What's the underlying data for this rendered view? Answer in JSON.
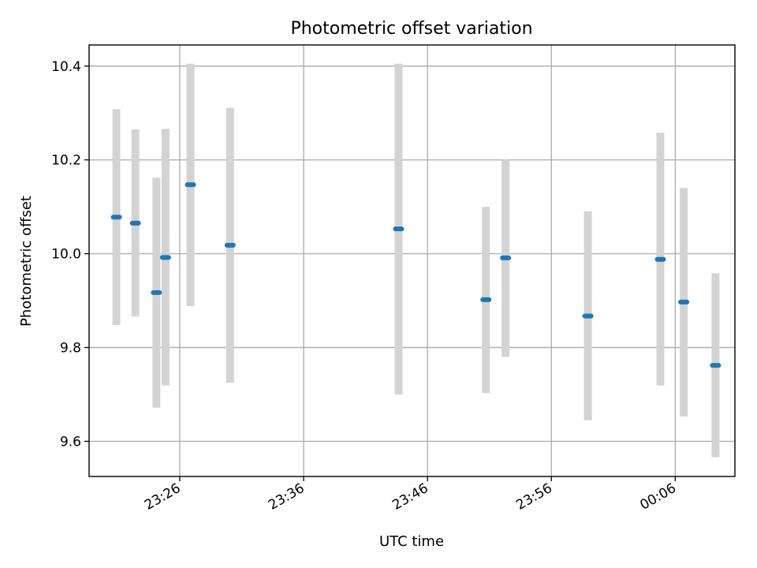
{
  "chart_data": {
    "type": "scatter",
    "title": "Photometric offset variation",
    "xlabel": "UTC time",
    "ylabel": "Photometric offset",
    "x_unit": "UTC clock time",
    "x_ticks": [
      "23:26",
      "23:36",
      "23:46",
      "23:56",
      "00:06"
    ],
    "y_ticks": [
      9.6,
      9.8,
      10.0,
      10.2,
      10.4
    ],
    "xlim": [
      "23:18:41",
      "00:10:49"
    ],
    "ylim": [
      9.525,
      10.445
    ],
    "grid": true,
    "marker_color": "#1f77b4",
    "errorbar_color": "#d3d3d3",
    "points": [
      {
        "x": "23:20:53",
        "y": 10.078,
        "low": 9.848,
        "high": 10.308
      },
      {
        "x": "23:22:25",
        "y": 10.065,
        "low": 9.866,
        "high": 10.265
      },
      {
        "x": "23:24:07",
        "y": 9.917,
        "low": 9.672,
        "high": 10.162
      },
      {
        "x": "23:24:51",
        "y": 9.992,
        "low": 9.719,
        "high": 10.266
      },
      {
        "x": "23:26:52",
        "y": 10.147,
        "low": 9.888,
        "high": 10.405
      },
      {
        "x": "23:30:04",
        "y": 10.018,
        "low": 9.725,
        "high": 10.311
      },
      {
        "x": "23:43:40",
        "y": 10.053,
        "low": 9.7,
        "high": 10.405
      },
      {
        "x": "23:50:43",
        "y": 9.902,
        "low": 9.703,
        "high": 10.1
      },
      {
        "x": "23:52:18",
        "y": 9.991,
        "low": 9.78,
        "high": 10.202
      },
      {
        "x": "23:58:57",
        "y": 9.867,
        "low": 9.645,
        "high": 10.09
      },
      {
        "x": "00:04:48",
        "y": 9.988,
        "low": 9.719,
        "high": 10.258
      },
      {
        "x": "00:06:41",
        "y": 9.897,
        "low": 9.653,
        "high": 10.14
      },
      {
        "x": "00:09:15",
        "y": 9.762,
        "low": 9.566,
        "high": 9.958
      }
    ]
  }
}
